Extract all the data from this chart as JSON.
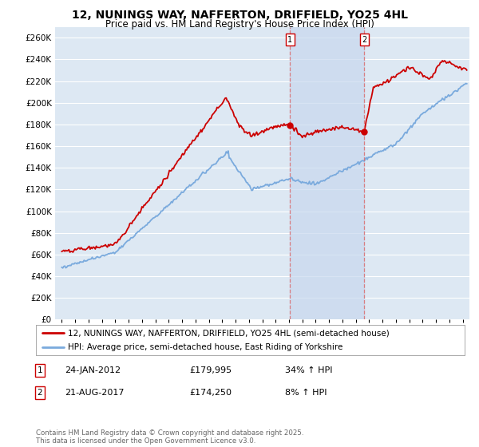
{
  "title": "12, NUNINGS WAY, NAFFERTON, DRIFFIELD, YO25 4HL",
  "subtitle": "Price paid vs. HM Land Registry's House Price Index (HPI)",
  "legend_line1": "12, NUNINGS WAY, NAFFERTON, DRIFFIELD, YO25 4HL (semi-detached house)",
  "legend_line2": "HPI: Average price, semi-detached house, East Riding of Yorkshire",
  "footnote": "Contains HM Land Registry data © Crown copyright and database right 2025.\nThis data is licensed under the Open Government Licence v3.0.",
  "transactions": [
    {
      "label": "1",
      "date": "24-JAN-2012",
      "price": 179995,
      "pct": "34% ↑ HPI",
      "x": 2012.07
    },
    {
      "label": "2",
      "date": "21-AUG-2017",
      "price": 174250,
      "pct": "8% ↑ HPI",
      "x": 2017.64
    }
  ],
  "house_color": "#cc0000",
  "hpi_color": "#7aaadd",
  "background_chart": "#dde8f3",
  "background_fig": "#ffffff",
  "grid_color": "#ffffff",
  "shade_color": "#c8d8ee",
  "ylim": [
    0,
    270000
  ],
  "yticks": [
    0,
    20000,
    40000,
    60000,
    80000,
    100000,
    120000,
    140000,
    160000,
    180000,
    200000,
    220000,
    240000,
    260000
  ],
  "xlim": [
    1994.5,
    2025.5
  ],
  "xticks": [
    1995,
    1996,
    1997,
    1998,
    1999,
    2000,
    2001,
    2002,
    2003,
    2004,
    2005,
    2006,
    2007,
    2008,
    2009,
    2010,
    2011,
    2012,
    2013,
    2014,
    2015,
    2016,
    2017,
    2018,
    2019,
    2020,
    2021,
    2022,
    2023,
    2024,
    2025
  ]
}
